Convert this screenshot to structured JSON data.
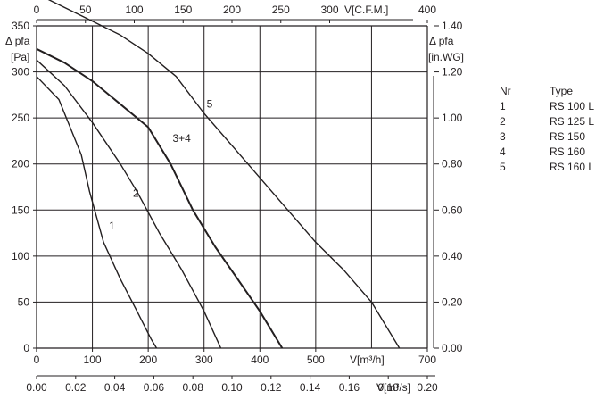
{
  "chart_data": {
    "type": "line",
    "axes": {
      "x_bottom_primary": {
        "label": "V[m³/h]",
        "range": [
          0,
          700
        ],
        "ticks": [
          "0",
          "100",
          "200",
          "300",
          "400",
          "500",
          "700"
        ]
      },
      "x_bottom_secondary": {
        "label": "V[m³/s]",
        "range": [
          0,
          0.2
        ],
        "ticks": [
          "0.00",
          "0.02",
          "0.04",
          "0.06",
          "0.08",
          "0.10",
          "0.12",
          "0.14",
          "0.16",
          "0.18",
          "0.20"
        ]
      },
      "x_top": {
        "label": "V[C.F.M.]",
        "range": [
          0,
          400
        ],
        "ticks": [
          "0",
          "50",
          "100",
          "150",
          "200",
          "250",
          "300",
          "400"
        ]
      },
      "y_left": {
        "label_line1": "Δ pfa",
        "label_line2": "[Pa]",
        "range": [
          0,
          350
        ],
        "ticks": [
          "0",
          "50",
          "100",
          "150",
          "200",
          "250",
          "300",
          "350"
        ]
      },
      "y_right": {
        "label_line1": "Δ pfa",
        "label_line2": "[in.WG]",
        "range": [
          0,
          1.4
        ],
        "ticks": [
          "0.00",
          "0.20",
          "0.40",
          "0.60",
          "0.80",
          "1.00",
          "1.20",
          "1.40"
        ]
      },
      "grid": true
    },
    "series": [
      {
        "name": "1",
        "x": [
          0,
          40,
          80,
          95,
          120,
          150,
          180,
          205,
          215
        ],
        "y": [
          295,
          270,
          210,
          170,
          115,
          75,
          40,
          10,
          0
        ],
        "curve_label": {
          "x": 135,
          "y": 133
        }
      },
      {
        "name": "2",
        "x": [
          0,
          50,
          100,
          150,
          180,
          220,
          260,
          300,
          330
        ],
        "y": [
          313,
          285,
          245,
          200,
          170,
          125,
          85,
          40,
          0
        ],
        "curve_label": {
          "x": 178,
          "y": 168
        }
      },
      {
        "name": "3+4",
        "x": [
          0,
          50,
          100,
          150,
          200,
          240,
          280,
          320,
          360,
          400,
          440
        ],
        "y": [
          325,
          310,
          290,
          265,
          240,
          200,
          150,
          110,
          75,
          40,
          0
        ],
        "curve_label": {
          "x": 260,
          "y": 228
        }
      },
      {
        "name": "5",
        "x": [
          0,
          50,
          100,
          150,
          200,
          250,
          300,
          350,
          400,
          450,
          500,
          550,
          600,
          650
        ],
        "y": [
          385,
          370,
          355,
          340,
          320,
          295,
          255,
          220,
          185,
          150,
          115,
          85,
          50,
          0
        ],
        "curve_label": {
          "x": 310,
          "y": 265
        }
      }
    ]
  },
  "legend": {
    "header": {
      "nr": "Nr",
      "type": "Type"
    },
    "rows": [
      {
        "nr": "1",
        "type": "RS 100 L"
      },
      {
        "nr": "2",
        "type": "RS 125 L"
      },
      {
        "nr": "3",
        "type": "RS 150"
      },
      {
        "nr": "4",
        "type": "RS 160"
      },
      {
        "nr": "5",
        "type": "RS 160 L"
      }
    ]
  }
}
